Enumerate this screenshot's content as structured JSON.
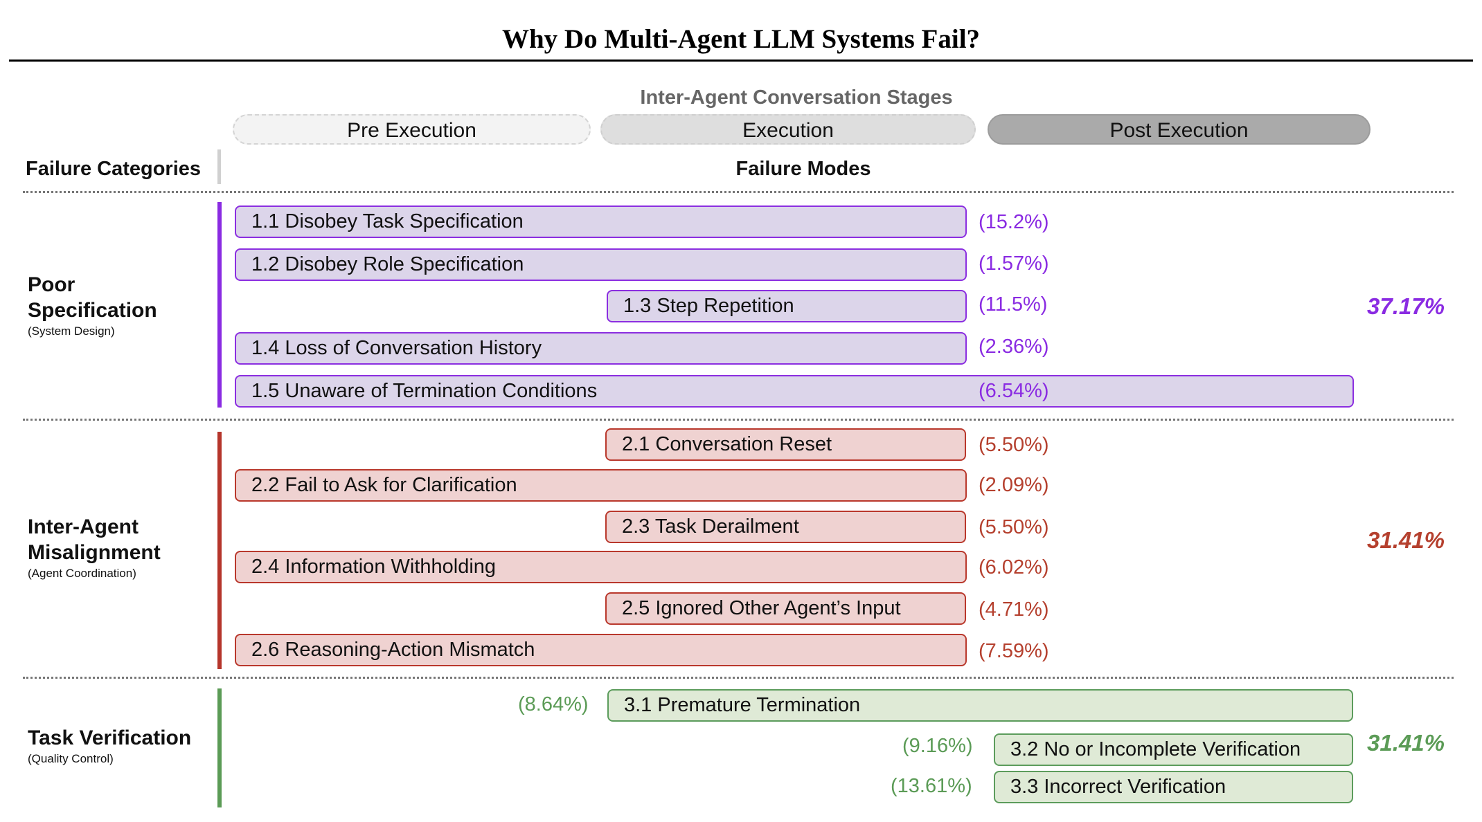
{
  "title": "Why Do Multi-Agent LLM Systems Fail?",
  "stages_label": "Inter-Agent Conversation Stages",
  "stages": [
    "Pre Execution",
    "Execution",
    "Post Execution"
  ],
  "headers": {
    "categories": "Failure Categories",
    "modes": "Failure Modes"
  },
  "colors": {
    "purple": "#8a2be2",
    "red": "#b5402e",
    "green": "#5b9b56"
  },
  "categories": [
    {
      "name_line1": "Poor",
      "name_line2": "Specification",
      "subtitle": "(System Design)",
      "total": "37.17%",
      "modes": [
        {
          "label": "1.1 Disobey Task Specification",
          "pct": "(15.2%)",
          "stages": [
            "Pre Execution",
            "Execution"
          ]
        },
        {
          "label": "1.2 Disobey Role Specification",
          "pct": "(1.57%)",
          "stages": [
            "Pre Execution",
            "Execution"
          ]
        },
        {
          "label": "1.3 Step Repetition",
          "pct": "(11.5%)",
          "stages": [
            "Execution"
          ]
        },
        {
          "label": "1.4 Loss of Conversation History",
          "pct": "(2.36%)",
          "stages": [
            "Pre Execution",
            "Execution"
          ]
        },
        {
          "label": "1.5 Unaware of Termination Conditions",
          "pct": "(6.54%)",
          "stages": [
            "Pre Execution",
            "Execution",
            "Post Execution"
          ]
        }
      ]
    },
    {
      "name_line1": "Inter-Agent",
      "name_line2": "Misalignment",
      "subtitle": "(Agent Coordination)",
      "total": "31.41%",
      "modes": [
        {
          "label": "2.1 Conversation Reset",
          "pct": "(5.50%)",
          "stages": [
            "Execution"
          ]
        },
        {
          "label": "2.2 Fail to Ask for Clarification",
          "pct": "(2.09%)",
          "stages": [
            "Pre Execution",
            "Execution"
          ]
        },
        {
          "label": "2.3 Task Derailment",
          "pct": "(5.50%)",
          "stages": [
            "Execution"
          ]
        },
        {
          "label": "2.4 Information Withholding",
          "pct": "(6.02%)",
          "stages": [
            "Pre Execution",
            "Execution"
          ]
        },
        {
          "label": "2.5 Ignored Other Agent’s Input",
          "pct": "(4.71%)",
          "stages": [
            "Execution"
          ]
        },
        {
          "label": "2.6 Reasoning-Action Mismatch",
          "pct": "(7.59%)",
          "stages": [
            "Pre Execution",
            "Execution"
          ]
        }
      ]
    },
    {
      "name_line1": "Task Verification",
      "subtitle": "(Quality Control)",
      "total": "31.41%",
      "modes": [
        {
          "label": "3.1  Premature Termination",
          "pct": "(8.64%)",
          "stages": [
            "Execution",
            "Post Execution"
          ]
        },
        {
          "label": "3.2 No or Incomplete Verification",
          "pct": "(9.16%)",
          "stages": [
            "Post Execution"
          ]
        },
        {
          "label": "3.3 Incorrect Verification",
          "pct": "(13.61%)",
          "stages": [
            "Post Execution"
          ]
        }
      ]
    }
  ]
}
